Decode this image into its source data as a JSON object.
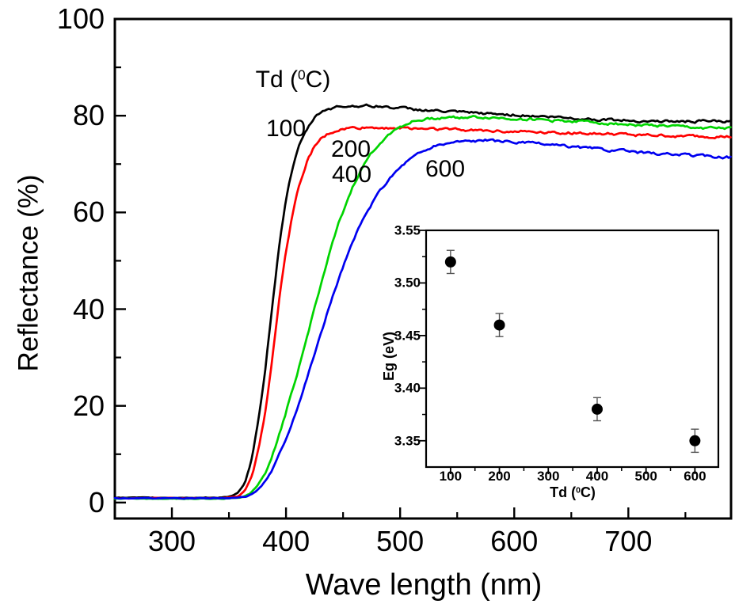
{
  "figure": {
    "background": "#ffffff"
  },
  "chart_data": [
    {
      "id": "main",
      "type": "line",
      "title": "",
      "xlabel": "Wave length (nm)",
      "ylabel": "Reflectance (%)",
      "xlim": [
        250,
        790
      ],
      "ylim": [
        0,
        100
      ],
      "draw_ylim": [
        -3.3,
        100
      ],
      "grid": false,
      "x_ticks": [
        300,
        400,
        500,
        600,
        700
      ],
      "x_minor_ticks": [
        350,
        450,
        550,
        650,
        750
      ],
      "y_ticks": [
        0,
        20,
        40,
        60,
        80,
        100
      ],
      "y_minor_ticks": [
        10,
        30,
        50,
        70,
        90
      ],
      "legend_title": {
        "prefix": "Td (",
        "sup": "0",
        "suffix": "C)"
      },
      "legend_title_pos": [
        370,
        101
      ],
      "series": [
        {
          "name": "100",
          "color": "#000000",
          "seed": 3,
          "label_pos": [
            361,
            163
          ],
          "points": [
            [
              250,
              1
            ],
            [
              300,
              1
            ],
            [
              340,
              1
            ],
            [
              352,
              1.3
            ],
            [
              358,
              2
            ],
            [
              364,
              4
            ],
            [
              370,
              9
            ],
            [
              376,
              17
            ],
            [
              382,
              28
            ],
            [
              388,
              41
            ],
            [
              394,
              53
            ],
            [
              400,
              63
            ],
            [
              406,
              69.5
            ],
            [
              412,
              74
            ],
            [
              418,
              77
            ],
            [
              424,
              79.3
            ],
            [
              430,
              80.7
            ],
            [
              436,
              81.4
            ],
            [
              444,
              81.8
            ],
            [
              452,
              82
            ],
            [
              465,
              82.1
            ],
            [
              480,
              82
            ],
            [
              500,
              81.6
            ],
            [
              520,
              81.2
            ],
            [
              545,
              80.8
            ],
            [
              570,
              80.5
            ],
            [
              600,
              80.2
            ],
            [
              630,
              79.8
            ],
            [
              660,
              79.4
            ],
            [
              690,
              79.1
            ],
            [
              720,
              78.9
            ],
            [
              750,
              78.8
            ],
            [
              770,
              78.9
            ],
            [
              790,
              78.7
            ]
          ]
        },
        {
          "name": "200",
          "color": "#ff0000",
          "seed": 7,
          "label_pos": [
            443,
            189
          ],
          "points": [
            [
              250,
              0.9
            ],
            [
              300,
              0.9
            ],
            [
              345,
              0.9
            ],
            [
              358,
              1.3
            ],
            [
              364,
              2.5
            ],
            [
              370,
              5.5
            ],
            [
              376,
              11
            ],
            [
              382,
              19
            ],
            [
              388,
              30
            ],
            [
              394,
              42
            ],
            [
              400,
              52
            ],
            [
              406,
              60
            ],
            [
              412,
              66
            ],
            [
              418,
              70.3
            ],
            [
              424,
              73.2
            ],
            [
              430,
              75
            ],
            [
              438,
              76.3
            ],
            [
              446,
              77
            ],
            [
              456,
              77.4
            ],
            [
              470,
              77.5
            ],
            [
              490,
              77.5
            ],
            [
              510,
              77.4
            ],
            [
              540,
              77.2
            ],
            [
              570,
              77
            ],
            [
              600,
              76.8
            ],
            [
              640,
              76.5
            ],
            [
              680,
              76.2
            ],
            [
              720,
              75.9
            ],
            [
              760,
              75.7
            ],
            [
              790,
              75.6
            ]
          ]
        },
        {
          "name": "400",
          "color": "#00d400",
          "seed": 11,
          "label_pos": [
            444,
            221
          ],
          "points": [
            [
              250,
              0.8
            ],
            [
              345,
              0.8
            ],
            [
              360,
              1
            ],
            [
              368,
              1.8
            ],
            [
              374,
              3.2
            ],
            [
              380,
              5.5
            ],
            [
              386,
              8.5
            ],
            [
              392,
              12.5
            ],
            [
              398,
              17
            ],
            [
              404,
              22
            ],
            [
              410,
              27
            ],
            [
              416,
              32
            ],
            [
              422,
              37.5
            ],
            [
              428,
              43
            ],
            [
              434,
              48
            ],
            [
              440,
              53
            ],
            [
              446,
              57.5
            ],
            [
              452,
              61.5
            ],
            [
              458,
              65
            ],
            [
              464,
              68
            ],
            [
              470,
              70.5
            ],
            [
              476,
              72.6
            ],
            [
              484,
              74.8
            ],
            [
              492,
              76.5
            ],
            [
              500,
              77.8
            ],
            [
              510,
              78.7
            ],
            [
              520,
              79.2
            ],
            [
              532,
              79.5
            ],
            [
              545,
              79.7
            ],
            [
              560,
              79.7
            ],
            [
              580,
              79.6
            ],
            [
              600,
              79.4
            ],
            [
              625,
              79.1
            ],
            [
              650,
              78.9
            ],
            [
              675,
              78.6
            ],
            [
              700,
              78.2
            ],
            [
              730,
              77.9
            ],
            [
              760,
              77.5
            ],
            [
              790,
              77.3
            ]
          ]
        },
        {
          "name": "600",
          "color": "#0000f0",
          "seed": 17,
          "label_pos": [
            562,
            214
          ],
          "points": [
            [
              250,
              0.9
            ],
            [
              350,
              0.9
            ],
            [
              365,
              1.2
            ],
            [
              372,
              2
            ],
            [
              378,
              3.3
            ],
            [
              384,
              5.2
            ],
            [
              390,
              7.8
            ],
            [
              396,
              11
            ],
            [
              402,
              14.5
            ],
            [
              408,
              18.5
            ],
            [
              414,
              22.5
            ],
            [
              420,
              27
            ],
            [
              426,
              31.5
            ],
            [
              432,
              36
            ],
            [
              438,
              40.5
            ],
            [
              444,
              44.8
            ],
            [
              450,
              48.8
            ],
            [
              456,
              52.4
            ],
            [
              462,
              55.7
            ],
            [
              468,
              58.7
            ],
            [
              474,
              61.3
            ],
            [
              480,
              63.6
            ],
            [
              488,
              66.2
            ],
            [
              496,
              68.4
            ],
            [
              505,
              70.4
            ],
            [
              515,
              72
            ],
            [
              525,
              73.2
            ],
            [
              535,
              74
            ],
            [
              548,
              74.6
            ],
            [
              560,
              74.8
            ],
            [
              575,
              74.9
            ],
            [
              590,
              74.7
            ],
            [
              610,
              74.4
            ],
            [
              630,
              74
            ],
            [
              655,
              73.5
            ],
            [
              680,
              73
            ],
            [
              705,
              72.5
            ],
            [
              730,
              72.1
            ],
            [
              755,
              71.8
            ],
            [
              775,
              71.6
            ],
            [
              790,
              71.4
            ]
          ]
        }
      ]
    },
    {
      "id": "inset",
      "type": "scatter",
      "xlabel": {
        "prefix": "Td (",
        "sup": "0",
        "suffix": "C)"
      },
      "ylabel": "Eg (eV)",
      "xlim": [
        50,
        648
      ],
      "ylim": [
        3.325,
        3.55
      ],
      "grid": false,
      "x_ticks": [
        100,
        200,
        300,
        400,
        500,
        600
      ],
      "x_minor_ticks": [
        150,
        250,
        350,
        450,
        550
      ],
      "y_ticks": [
        3.35,
        3.4,
        3.45,
        3.5,
        3.55
      ],
      "y_tick_labels": [
        "3.35",
        "3.40",
        "3.45",
        "3.50",
        "3.55"
      ],
      "y_minor_ticks": [
        3.375,
        3.425,
        3.475,
        3.525
      ],
      "marker_color": "#000000",
      "error_color": "#555555",
      "points": [
        {
          "x": 100,
          "y": 3.52,
          "err": 0.011
        },
        {
          "x": 200,
          "y": 3.46,
          "err": 0.011
        },
        {
          "x": 400,
          "y": 3.38,
          "err": 0.011
        },
        {
          "x": 600,
          "y": 3.35,
          "err": 0.011
        }
      ]
    }
  ]
}
